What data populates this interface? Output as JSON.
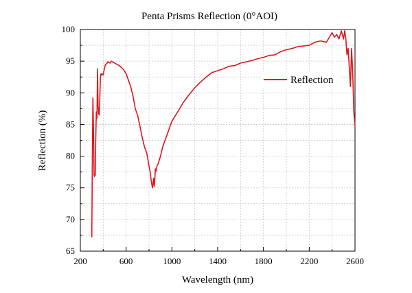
{
  "chart_data": {
    "type": "line",
    "title": "Penta Prisms Reflection (0°AOI)",
    "xlabel": "Wavelength (nm)",
    "ylabel": "Reflection (%)",
    "xlim": [
      200,
      2600
    ],
    "ylim": [
      65,
      100
    ],
    "x_ticks": [
      "200",
      "600",
      "1000",
      "1400",
      "1800",
      "2200",
      "2600"
    ],
    "y_ticks": [
      "65",
      "70",
      "75",
      "80",
      "85",
      "90",
      "95",
      "100"
    ],
    "grid": true,
    "legend": {
      "position": "top-right",
      "entries": [
        "Reflection"
      ]
    },
    "colors": {
      "series": "#e0151b"
    },
    "series": [
      {
        "name": "Reflection",
        "x": [
          300,
          305,
          310,
          315,
          320,
          325,
          330,
          335,
          340,
          345,
          350,
          355,
          360,
          365,
          370,
          375,
          380,
          385,
          390,
          400,
          410,
          420,
          430,
          440,
          450,
          460,
          470,
          480,
          490,
          500,
          520,
          540,
          560,
          580,
          600,
          620,
          640,
          660,
          680,
          700,
          720,
          740,
          760,
          780,
          800,
          810,
          820,
          830,
          840,
          845,
          850,
          855,
          860,
          870,
          880,
          900,
          920,
          940,
          960,
          980,
          1000,
          1050,
          1100,
          1150,
          1200,
          1250,
          1300,
          1350,
          1400,
          1450,
          1500,
          1550,
          1600,
          1650,
          1700,
          1750,
          1800,
          1850,
          1900,
          1950,
          2000,
          2050,
          2100,
          2150,
          2200,
          2250,
          2300,
          2350,
          2400,
          2420,
          2440,
          2460,
          2480,
          2500,
          2510,
          2520,
          2530,
          2540,
          2550,
          2560,
          2570,
          2580,
          2590,
          2600
        ],
        "y": [
          67.2,
          80.0,
          89.2,
          84.0,
          77.0,
          76.8,
          77.0,
          83.0,
          87.0,
          86.0,
          93.8,
          88.0,
          86.7,
          86.5,
          89.0,
          92.5,
          93.0,
          92.8,
          93.0,
          92.8,
          93.8,
          94.5,
          94.6,
          94.9,
          94.8,
          94.7,
          95.0,
          94.9,
          94.8,
          94.7,
          94.5,
          94.3,
          94.0,
          93.6,
          93.0,
          92.0,
          91.0,
          89.5,
          87.5,
          86.5,
          84.8,
          83.0,
          81.5,
          80.5,
          78.5,
          77.5,
          76.0,
          75.0,
          76.5,
          75.2,
          76.0,
          78.0,
          77.5,
          78.5,
          78.8,
          80.0,
          81.5,
          82.5,
          83.5,
          84.5,
          85.5,
          87.0,
          88.5,
          89.7,
          90.8,
          91.7,
          92.5,
          93.2,
          93.5,
          93.8,
          94.2,
          94.3,
          94.7,
          94.9,
          95.1,
          95.4,
          95.6,
          95.9,
          96.0,
          96.5,
          96.8,
          97.0,
          97.3,
          97.4,
          97.5,
          98.0,
          98.2,
          98.0,
          99.5,
          98.8,
          99.2,
          98.5,
          99.8,
          98.5,
          99.8,
          98.5,
          96.0,
          97.0,
          94.0,
          91.0,
          97.0,
          93.0,
          87.0,
          84.8
        ]
      }
    ]
  }
}
